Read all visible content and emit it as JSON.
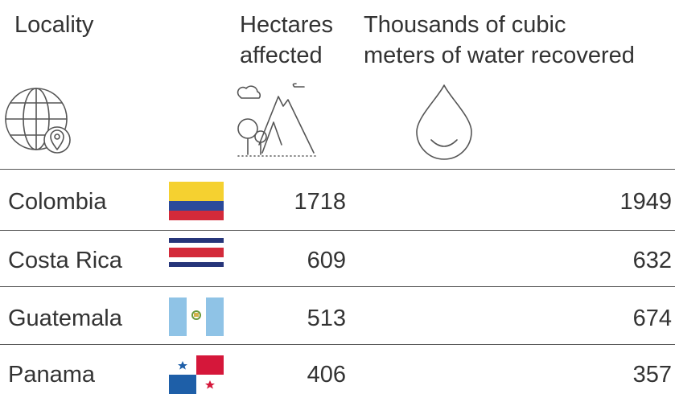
{
  "table": {
    "header": [
      {
        "lines": [
          "Locality"
        ]
      },
      {
        "lines": [
          "Hectares",
          "affected"
        ]
      },
      {
        "lines": [
          "Thousands of cubic",
          "meters of water recovered"
        ]
      }
    ],
    "rows": [
      [
        "Colombia",
        "1718",
        "1949"
      ],
      [
        "Costa Rica",
        "609",
        "632"
      ],
      [
        "Guatemala",
        "513",
        "674"
      ],
      [
        "Panama",
        "406",
        "357"
      ]
    ]
  }
}
